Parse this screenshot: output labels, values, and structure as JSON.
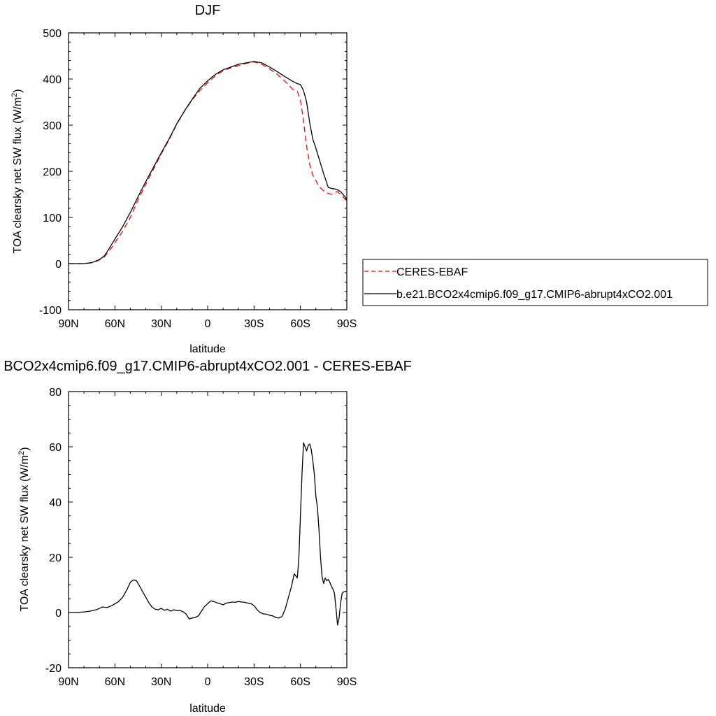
{
  "chart_data": [
    {
      "type": "line",
      "title": "DJF",
      "xlabel": "latitude",
      "ylabel": "TOA clearsky net SW flux (W/m",
      "ylabel_sup": "2",
      "ylabel_close": ")",
      "xlim": [
        90,
        -90
      ],
      "ylim": [
        -100,
        500
      ],
      "xticks": [
        {
          "value": 90,
          "label": "90N"
        },
        {
          "value": 60,
          "label": "60N"
        },
        {
          "value": 30,
          "label": "30N"
        },
        {
          "value": 0,
          "label": "0"
        },
        {
          "value": -30,
          "label": "30S"
        },
        {
          "value": -60,
          "label": "60S"
        },
        {
          "value": -90,
          "label": "90S"
        }
      ],
      "yticks": [
        -100,
        0,
        100,
        200,
        300,
        400,
        500
      ],
      "legend": {
        "placement": "right"
      },
      "series": [
        {
          "name": "CERES-EBAF",
          "color": "#ff0000",
          "dash": "dashed",
          "x": [
            90,
            85,
            80,
            75,
            72,
            70,
            67,
            65,
            62,
            60,
            55,
            50,
            45,
            40,
            35,
            30,
            25,
            20,
            15,
            10,
            5,
            0,
            -5,
            -10,
            -15,
            -20,
            -25,
            -30,
            -35,
            -40,
            -45,
            -50,
            -55,
            -58,
            -60,
            -62,
            -64,
            -66,
            -68,
            -70,
            -72,
            -75,
            -78,
            -80,
            -82,
            -84,
            -86,
            -88,
            -90
          ],
          "y": [
            0,
            0,
            0,
            2,
            5,
            8,
            14,
            22,
            35,
            45,
            70,
            100,
            138,
            172,
            205,
            238,
            268,
            302,
            330,
            355,
            375,
            392,
            407,
            418,
            424,
            429,
            434,
            437,
            432,
            422,
            410,
            395,
            378,
            373,
            355,
            310,
            255,
            215,
            192,
            180,
            167,
            158,
            152,
            150,
            154,
            156,
            150,
            143,
            136
          ]
        },
        {
          "name": "b.e21.BCO2x4cmip6.f09_g17.CMIP6-abrupt4xCO2.001",
          "color": "#000000",
          "dash": "solid",
          "x": [
            90,
            85,
            80,
            75,
            72,
            70,
            67,
            65,
            62,
            60,
            55,
            50,
            45,
            40,
            35,
            30,
            25,
            20,
            15,
            10,
            5,
            0,
            -5,
            -10,
            -15,
            -20,
            -25,
            -30,
            -35,
            -40,
            -45,
            -50,
            -55,
            -58,
            -60,
            -62,
            -64,
            -66,
            -68,
            -70,
            -72,
            -75,
            -78,
            -80,
            -82,
            -84,
            -86,
            -88,
            -90
          ],
          "y": [
            0,
            0,
            0,
            2,
            6,
            9,
            16,
            26,
            42,
            53,
            80,
            111,
            145,
            178,
            209,
            240,
            270,
            303,
            331,
            356,
            380,
            396,
            410,
            420,
            426,
            432,
            435,
            438,
            435,
            426,
            416,
            405,
            395,
            390,
            388,
            375,
            350,
            305,
            270,
            250,
            228,
            195,
            165,
            163,
            162,
            160,
            156,
            148,
            140
          ]
        }
      ]
    },
    {
      "type": "line",
      "title": "BCO2x4cmip6.f09_g17.CMIP6-abrupt4xCO2.001 - CERES-EBAF",
      "xlabel": "latitude",
      "ylabel": "TOA clearsky net SW flux (W/m",
      "ylabel_sup": "2",
      "ylabel_close": ")",
      "xlim": [
        90,
        -90
      ],
      "ylim": [
        -20,
        80
      ],
      "xticks": [
        {
          "value": 90,
          "label": "90N"
        },
        {
          "value": 60,
          "label": "60N"
        },
        {
          "value": 30,
          "label": "30N"
        },
        {
          "value": 0,
          "label": "0"
        },
        {
          "value": -30,
          "label": "30S"
        },
        {
          "value": -60,
          "label": "60S"
        },
        {
          "value": -90,
          "label": "90S"
        }
      ],
      "yticks": [
        -20,
        0,
        20,
        40,
        60,
        80
      ],
      "series": [
        {
          "name": "",
          "color": "#000000",
          "dash": "solid",
          "x": [
            90,
            85,
            80,
            76,
            72,
            70,
            68,
            65,
            62,
            58,
            55,
            52,
            50,
            48,
            46,
            44,
            42,
            40,
            38,
            36,
            34,
            32,
            30,
            28,
            26,
            24,
            22,
            20,
            18,
            16,
            14,
            12,
            10,
            8,
            6,
            4,
            2,
            0,
            -2,
            -4,
            -6,
            -8,
            -10,
            -12,
            -14,
            -16,
            -18,
            -20,
            -22,
            -24,
            -26,
            -28,
            -30,
            -32,
            -34,
            -36,
            -38,
            -40,
            -42,
            -44,
            -46,
            -48,
            -50,
            -52,
            -54,
            -56,
            -58,
            -59,
            -60,
            -61,
            -62,
            -63,
            -64,
            -65,
            -66,
            -67,
            -68,
            -69,
            -70,
            -71,
            -72,
            -73,
            -74,
            -75,
            -76,
            -77,
            -78,
            -79,
            -80,
            -81,
            -82,
            -83,
            -84,
            -85,
            -86,
            -87,
            -88,
            -89,
            -90
          ],
          "y": [
            0,
            0,
            0.2,
            0.5,
            1.0,
            1.5,
            2.0,
            1.8,
            2.5,
            3.8,
            5.5,
            8.5,
            11,
            11.8,
            11.5,
            9.5,
            7.5,
            5.5,
            3.5,
            2.0,
            1.2,
            1.0,
            1.5,
            0.8,
            1.2,
            0.5,
            1.0,
            0.7,
            0.8,
            0.3,
            -0.5,
            -2.3,
            -2.0,
            -1.8,
            -1.2,
            0.5,
            2.2,
            3.2,
            4.2,
            4.0,
            3.5,
            3.2,
            2.8,
            3.4,
            3.6,
            3.8,
            3.7,
            4.0,
            3.8,
            3.7,
            3.4,
            3.2,
            2.5,
            1.0,
            0,
            -0.5,
            -0.6,
            -1.0,
            -1.2,
            -1.8,
            -2.0,
            -1.5,
            1.0,
            5.0,
            9.0,
            14.0,
            12.5,
            20.0,
            35.0,
            50.0,
            61.5,
            60.0,
            58.5,
            60.5,
            61.0,
            59.0,
            55.0,
            50.0,
            42.0,
            38.0,
            30.0,
            20.0,
            13.0,
            10.5,
            12.5,
            11.5,
            12.0,
            11.0,
            9.5,
            8.5,
            7.0,
            1.5,
            -4.5,
            -2.0,
            3.5,
            7.0,
            7.5,
            7.5,
            7.8
          ]
        }
      ]
    }
  ]
}
